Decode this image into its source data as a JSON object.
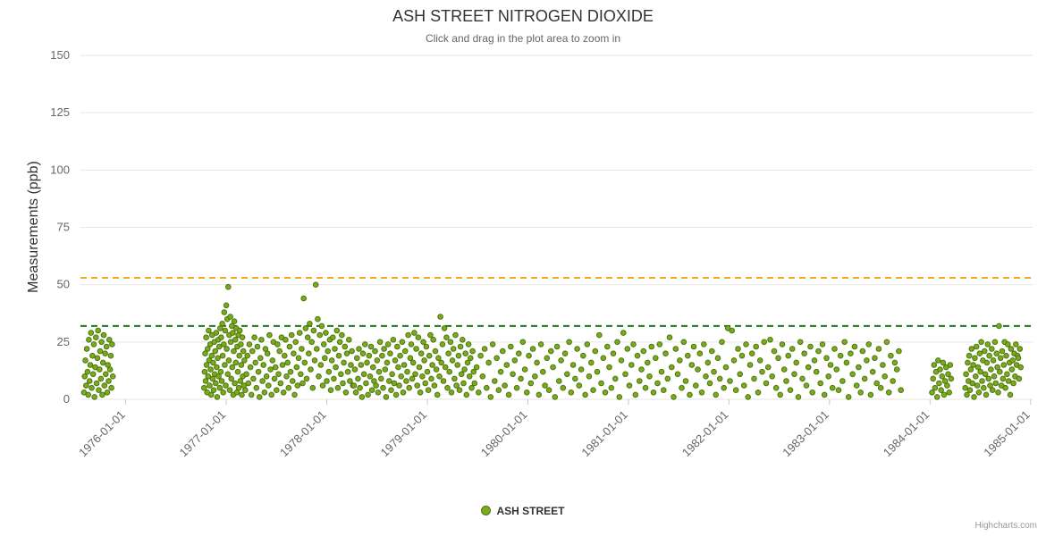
{
  "title": "ASH STREET NITROGEN DIOXIDE",
  "subtitle": "Click and drag in the plot area to zoom in",
  "y_axis": {
    "title": "Measurements (ppb)",
    "ticks": [
      0,
      25,
      50,
      75,
      100,
      125,
      150
    ],
    "max": 150
  },
  "x_axis": {
    "tick_years": [
      1976,
      1977,
      1978,
      1979,
      1980,
      1981,
      1982,
      1983,
      1984,
      1985
    ],
    "tick_labels": [
      "1976-01-01",
      "1977-01-01",
      "1978-01-01",
      "1979-01-01",
      "1980-01-01",
      "1981-01-01",
      "1982-01-01",
      "1983-01-01",
      "1984-01-01",
      "1985-01-01"
    ]
  },
  "legend": {
    "label": "ASH STREET"
  },
  "credits": "Highcharts.com",
  "colors": {
    "point_fill": "#78ab1e",
    "point_stroke": "#50750e",
    "grid": "#e6e6e6",
    "axis_line": "#c8c8c8",
    "tick": "#c8c8c8",
    "axis_label": "#666666",
    "plotline_orange": "#f5a623",
    "plotline_green": "#1d7a1d"
  },
  "chart_data": {
    "type": "scatter",
    "series_name": "ASH STREET",
    "title": "ASH STREET NITROGEN DIOXIDE",
    "xlabel": "",
    "ylabel": "Measurements (ppb)",
    "x_unit": "decimal_year",
    "x_range": [
      1975.55,
      1985.02
    ],
    "y_range": [
      0,
      150
    ],
    "grid": "horizontal",
    "legend_position": "bottom-center",
    "plot_lines": [
      {
        "value": 53,
        "color": "#f5a623",
        "style": "dashed"
      },
      {
        "value": 32,
        "color": "#1d7a1d",
        "style": "dashed"
      }
    ],
    "clusters": [
      {
        "x_start": 1975.585,
        "x_step": 0.007,
        "values": [
          3,
          10,
          17,
          6,
          22,
          12,
          2,
          26,
          8,
          15,
          29,
          5,
          19,
          11,
          24,
          1,
          14,
          27,
          7,
          18,
          30,
          4,
          13,
          21,
          9,
          25,
          2,
          16,
          28,
          6,
          20,
          11,
          23,
          3,
          15,
          8,
          26,
          13,
          19,
          5,
          24,
          10
        ]
      },
      {
        "x_start": 1976.78,
        "x_step": 0.005,
        "values": [
          5,
          12,
          20,
          8,
          27,
          15,
          3,
          22,
          10,
          30,
          17,
          6,
          24,
          13,
          2,
          19,
          28,
          9,
          16,
          4,
          25,
          11,
          21,
          7,
          29,
          14,
          1,
          18,
          26,
          10,
          23,
          5,
          31,
          12,
          27,
          8,
          33,
          19,
          3,
          24,
          38,
          15,
          30,
          6,
          41,
          22,
          35,
          11,
          49,
          17,
          28,
          4,
          36,
          25,
          9,
          32,
          14,
          29,
          2,
          21,
          34,
          7,
          26,
          16,
          31,
          3,
          23,
          12,
          28,
          5,
          19,
          30,
          8,
          24,
          15,
          2,
          27,
          10,
          21,
          6,
          17
        ]
      },
      {
        "x_start": 1977.19,
        "x_step": 0.01,
        "values": [
          4,
          11,
          19,
          7,
          24,
          14,
          2,
          21,
          9,
          27,
          16,
          5,
          23,
          12,
          1,
          18,
          26,
          8,
          15,
          3,
          22,
          10,
          20,
          6,
          28,
          13,
          2,
          17,
          25,
          9,
          14,
          4,
          24,
          11,
          21,
          7,
          27,
          15,
          3,
          19,
          26,
          10,
          16,
          5,
          23,
          12,
          28,
          8,
          20,
          2,
          25,
          14,
          6,
          18,
          29,
          11,
          22,
          7,
          44,
          16,
          31,
          9,
          27,
          20,
          33,
          13,
          25,
          5,
          30,
          17,
          50,
          22,
          35,
          10,
          28,
          15,
          32,
          6,
          24,
          18,
          29,
          8,
          21,
          12,
          26,
          4,
          17,
          27,
          9,
          22,
          14,
          30,
          5,
          19,
          25,
          11,
          28,
          7,
          16,
          23,
          3,
          20,
          12,
          26,
          8,
          15,
          21,
          6
        ]
      },
      {
        "x_start": 1978.27,
        "x_step": 0.01,
        "values": [
          6,
          13,
          3,
          18,
          9,
          22,
          5,
          15,
          1,
          20,
          11,
          24,
          7,
          16,
          2,
          19,
          10,
          23,
          4,
          14,
          8,
          21,
          6,
          17,
          3,
          12,
          25,
          9,
          19,
          5,
          22,
          13,
          1,
          16,
          24,
          8,
          20,
          4,
          11,
          26,
          7,
          17,
          2,
          23,
          14,
          6,
          19,
          10,
          25,
          3,
          15,
          21,
          8,
          12,
          28,
          5,
          18,
          24,
          9,
          16,
          29,
          11,
          22,
          6,
          27,
          14,
          3,
          20,
          10,
          25,
          17,
          7,
          23,
          12,
          4,
          19,
          28,
          9,
          15,
          26,
          6,
          21,
          13,
          2,
          18,
          10,
          36,
          16,
          24,
          8,
          31,
          14,
          27,
          5,
          20,
          12,
          25,
          3,
          17,
          22,
          9,
          28,
          6,
          15,
          19,
          4,
          23,
          11,
          26,
          7,
          13,
          20,
          2,
          16,
          24,
          10,
          18,
          5,
          21,
          12
        ]
      },
      {
        "x_start": 1979.47,
        "x_step": 0.02,
        "values": [
          7,
          14,
          3,
          19,
          10,
          22,
          5,
          16,
          1,
          24,
          8,
          18,
          4,
          12,
          21,
          6,
          15,
          2,
          23,
          11,
          17,
          5,
          20,
          9,
          25,
          13,
          3,
          19,
          7,
          22,
          10,
          16,
          2,
          24,
          12,
          6,
          18,
          4,
          21,
          14,
          1,
          23,
          8,
          17,
          5,
          20,
          11,
          25,
          3,
          15,
          9,
          22,
          6,
          13,
          19,
          2,
          24,
          10,
          16,
          4,
          21,
          12,
          28,
          7,
          18,
          3,
          23,
          14,
          5,
          20,
          9,
          25,
          1,
          17,
          29,
          11,
          22,
          6,
          15,
          24,
          2,
          19,
          8,
          13,
          21,
          5,
          16,
          10,
          23,
          3,
          18,
          7,
          24,
          12,
          4,
          20,
          9,
          27,
          14,
          1,
          22,
          11,
          17,
          5,
          25,
          8,
          19,
          2,
          15,
          23,
          6,
          13,
          20,
          3,
          24,
          10,
          16,
          7,
          21,
          12,
          2,
          18,
          9,
          25,
          5,
          14,
          31,
          8,
          30,
          17,
          4,
          22,
          11,
          19,
          6,
          24,
          1,
          15,
          20,
          9,
          23,
          3,
          17,
          12,
          25,
          7,
          14,
          26,
          10,
          21,
          5,
          18,
          2,
          24,
          13,
          8,
          19,
          4,
          22,
          11,
          16,
          1,
          25,
          9,
          20,
          6,
          14,
          23,
          3,
          17,
          12,
          21,
          7,
          24,
          2,
          18,
          10,
          15,
          5,
          22,
          13,
          4,
          19,
          8,
          25,
          16,
          1,
          20,
          11,
          23,
          6,
          14,
          3,
          21,
          9,
          17,
          24,
          2,
          12,
          18,
          7,
          22,
          5,
          15,
          10,
          25,
          3,
          19,
          8,
          16,
          13,
          21,
          4
        ]
      },
      {
        "x_start": 1984.02,
        "x_step": 0.01,
        "values": [
          3,
          9,
          15,
          5,
          12,
          1,
          17,
          7,
          13,
          4,
          10,
          16,
          2,
          8,
          14,
          6,
          11,
          3,
          15,
          9
        ]
      },
      {
        "x_start": 1984.35,
        "x_step": 0.008,
        "values": [
          5,
          11,
          2,
          16,
          8,
          19,
          4,
          13,
          22,
          7,
          15,
          1,
          18,
          10,
          23,
          6,
          14,
          3,
          20,
          12,
          25,
          8,
          17,
          5,
          21,
          11,
          2,
          16,
          24,
          9,
          19,
          6,
          13,
          22,
          4,
          17,
          10,
          25,
          7,
          20,
          14,
          3,
          32,
          12,
          18,
          6,
          21,
          9,
          15,
          25,
          5,
          19,
          11,
          24,
          8,
          16,
          2,
          22,
          13,
          17,
          7,
          20,
          10,
          24,
          15,
          19,
          18,
          9,
          22,
          14
        ]
      }
    ]
  }
}
